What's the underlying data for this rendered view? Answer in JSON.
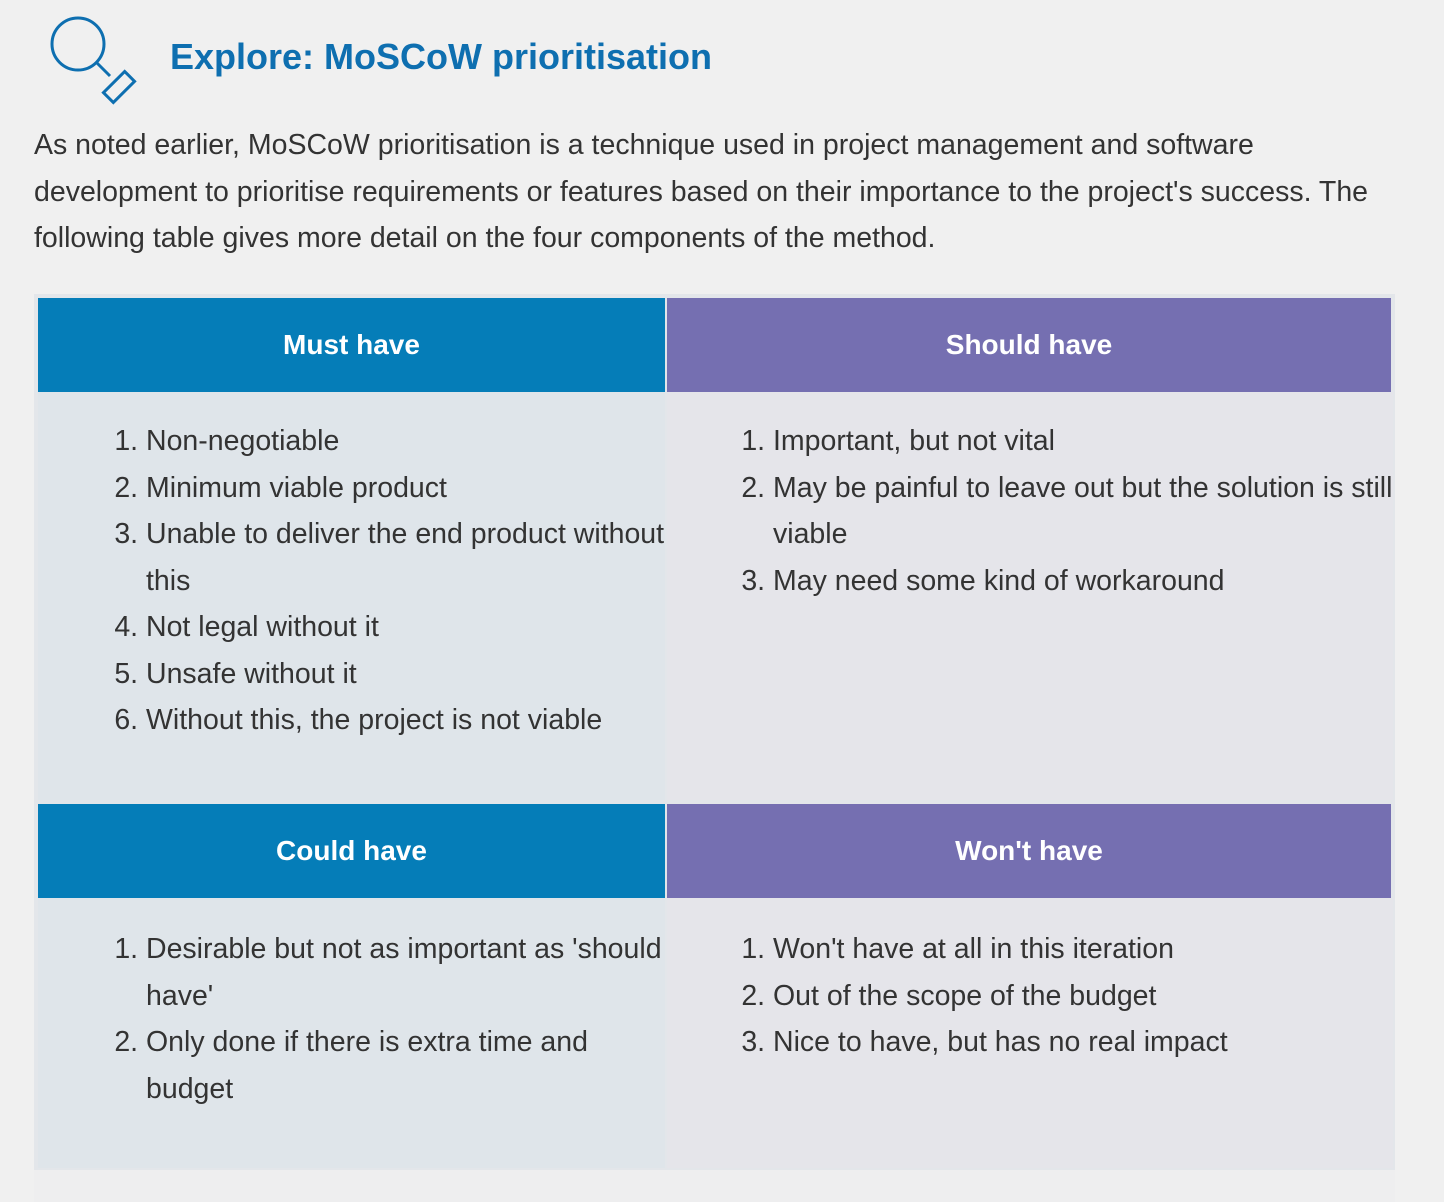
{
  "header": {
    "title": "Explore: MoSCoW prioritisation",
    "icon": "magnifier-icon",
    "title_color": "#0e6fb0"
  },
  "intro": "As noted earlier, MoSCoW prioritisation is a technique used in project management and software development to prioritise requirements or features based on their importance to the project's success. The following table gives more detail on the four components of the method.",
  "table": {
    "colors": {
      "must_could_header": "#057db8",
      "should_wont_header": "#756fb1"
    },
    "must": {
      "heading": "Must have",
      "items": [
        "Non-negotiable",
        "Minimum viable product",
        "Unable to deliver the end product without this",
        "Not legal without it",
        "Unsafe without it",
        "Without this, the project is not viable"
      ]
    },
    "should": {
      "heading": "Should have",
      "items": [
        "Important, but not vital",
        "May be painful to leave out but the solution is still viable",
        "May need some kind of workaround"
      ]
    },
    "could": {
      "heading": "Could have",
      "items": [
        "Desirable but not as important as 'should have'",
        "Only done if there is extra time and budget"
      ]
    },
    "wont": {
      "heading": "Won't have",
      "items": [
        "Won't have at all in this iteration",
        "Out of the scope of the budget",
        "Nice to have, but has no real impact"
      ]
    }
  }
}
